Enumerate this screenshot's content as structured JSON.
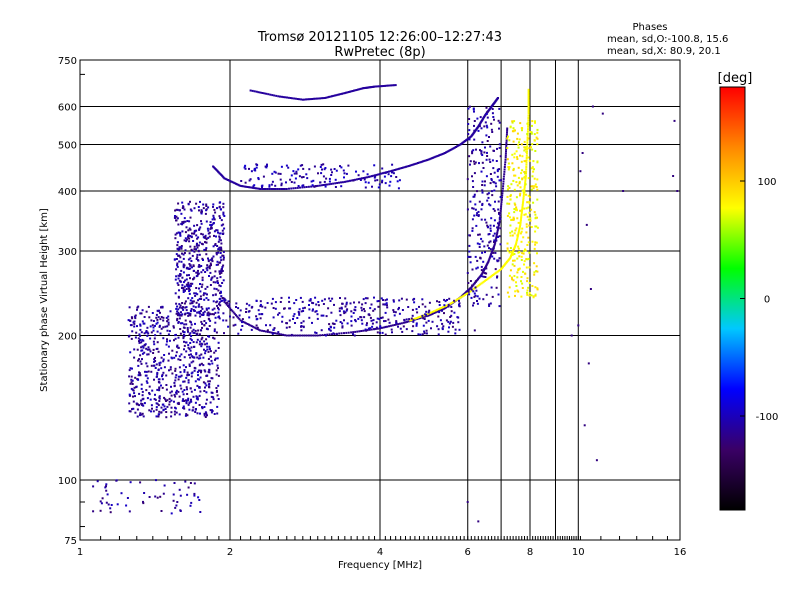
{
  "chart_data": {
    "type": "scatter",
    "title": "Tromsø 20121105 12:26:00–12:27:43",
    "subtitle": "RwPretec (8p)",
    "stats": {
      "header": "Phases",
      "line1": "mean, sd,O:-100.8, 15.6",
      "line2": "mean, sd,X:  80.9, 20.1"
    },
    "xlabel": "Frequency [MHz]",
    "ylabel": "Stationary phase Virtual Height [km]",
    "xscale": "log",
    "yscale": "log",
    "xlim": [
      1,
      16
    ],
    "ylim": [
      75,
      750
    ],
    "grid": true,
    "x_ticks": [
      1,
      2,
      4,
      6,
      8,
      10,
      16
    ],
    "x_grid": [
      2,
      4,
      6,
      7,
      8,
      9,
      10,
      16
    ],
    "y_ticks": [
      75,
      100,
      200,
      300,
      400,
      500,
      600,
      750
    ],
    "y_grid": [
      100,
      200,
      300,
      400,
      500,
      600
    ],
    "colorbar": {
      "label": "[deg]",
      "min": -180,
      "max": 180,
      "ticks": [
        -100,
        0,
        100
      ],
      "colors": [
        "#000000",
        "#3a0066",
        "#0000ff",
        "#00c8ff",
        "#00ff00",
        "#ffff00",
        "#ff8800",
        "#ff0000"
      ]
    },
    "series": [
      {
        "type": "curve",
        "color_phase": -110,
        "points": [
          [
            1.85,
            450
          ],
          [
            1.95,
            425
          ],
          [
            2.1,
            410
          ],
          [
            2.3,
            404
          ],
          [
            2.6,
            404
          ],
          [
            3.0,
            410
          ],
          [
            3.4,
            418
          ],
          [
            3.8,
            428
          ],
          [
            4.2,
            440
          ],
          [
            4.6,
            452
          ],
          [
            5.0,
            465
          ],
          [
            5.4,
            480
          ],
          [
            5.8,
            500
          ],
          [
            6.1,
            520
          ],
          [
            6.3,
            545
          ],
          [
            6.5,
            575
          ],
          [
            6.7,
            600
          ],
          [
            6.9,
            625
          ]
        ]
      },
      {
        "type": "curve",
        "color_phase": -115,
        "points": [
          [
            1.95,
            235
          ],
          [
            2.1,
            215
          ],
          [
            2.3,
            205
          ],
          [
            2.6,
            200
          ],
          [
            3.0,
            200
          ],
          [
            3.5,
            203
          ],
          [
            4.0,
            207
          ],
          [
            4.5,
            213
          ],
          [
            5.0,
            220
          ],
          [
            5.4,
            228
          ],
          [
            5.8,
            240
          ],
          [
            6.1,
            252
          ],
          [
            6.4,
            268
          ],
          [
            6.6,
            285
          ],
          [
            6.8,
            310
          ],
          [
            6.95,
            345
          ],
          [
            7.05,
            400
          ],
          [
            7.15,
            470
          ],
          [
            7.2,
            540
          ]
        ]
      },
      {
        "type": "curve",
        "color_phase": 78,
        "points": [
          [
            4.6,
            215
          ],
          [
            5.0,
            222
          ],
          [
            5.5,
            232
          ],
          [
            6.0,
            245
          ],
          [
            6.5,
            260
          ],
          [
            7.0,
            275
          ],
          [
            7.3,
            290
          ],
          [
            7.5,
            310
          ],
          [
            7.65,
            340
          ],
          [
            7.75,
            380
          ],
          [
            7.85,
            430
          ],
          [
            7.9,
            500
          ],
          [
            7.95,
            580
          ],
          [
            7.95,
            650
          ]
        ]
      },
      {
        "type": "curve",
        "color_phase": -110,
        "points": [
          [
            2.2,
            648
          ],
          [
            2.5,
            630
          ],
          [
            2.8,
            620
          ],
          [
            3.1,
            625
          ],
          [
            3.4,
            640
          ],
          [
            3.7,
            655
          ],
          [
            3.9,
            660
          ],
          [
            4.3,
            665
          ]
        ]
      },
      {
        "type": "cloud",
        "color_phase": -110,
        "n": 700,
        "seed": 11,
        "x_range": [
          1.25,
          1.9
        ],
        "y_range": [
          135,
          230
        ]
      },
      {
        "type": "cloud",
        "color_phase": -110,
        "n": 500,
        "seed": 23,
        "x_range": [
          1.55,
          1.95
        ],
        "y_range": [
          220,
          380
        ]
      },
      {
        "type": "cloud",
        "color_phase": -110,
        "n": 380,
        "seed": 37,
        "x_range": [
          1.9,
          5.8
        ],
        "y_range": [
          200,
          240
        ]
      },
      {
        "type": "cloud",
        "color_phase": -110,
        "n": 260,
        "seed": 41,
        "x_range": [
          6.0,
          7.0
        ],
        "y_range": [
          230,
          600
        ]
      },
      {
        "type": "cloud",
        "color_phase": 82,
        "n": 300,
        "seed": 53,
        "x_range": [
          7.2,
          8.3
        ],
        "y_range": [
          240,
          560
        ]
      },
      {
        "type": "cloud",
        "color_phase": -105,
        "n": 140,
        "seed": 61,
        "x_range": [
          2.1,
          4.4
        ],
        "y_range": [
          405,
          455
        ]
      },
      {
        "type": "cloud",
        "color_phase": -110,
        "n": 60,
        "seed": 71,
        "x_range": [
          1.05,
          1.75
        ],
        "y_range": [
          85,
          100
        ]
      },
      {
        "type": "sparse",
        "color_phase": -120,
        "points": [
          [
            10.2,
            480
          ],
          [
            10.7,
            600
          ],
          [
            11.2,
            580
          ],
          [
            12.3,
            400
          ],
          [
            15.6,
            560
          ],
          [
            15.8,
            400
          ],
          [
            10.1,
            440
          ],
          [
            10.4,
            340
          ],
          [
            10.6,
            250
          ],
          [
            10.0,
            210
          ],
          [
            10.5,
            175
          ],
          [
            10.3,
            130
          ],
          [
            10.9,
            110
          ],
          [
            9.7,
            200
          ],
          [
            15.5,
            430
          ],
          [
            6.2,
            205
          ],
          [
            6.0,
            90
          ],
          [
            6.3,
            82
          ]
        ]
      }
    ]
  }
}
